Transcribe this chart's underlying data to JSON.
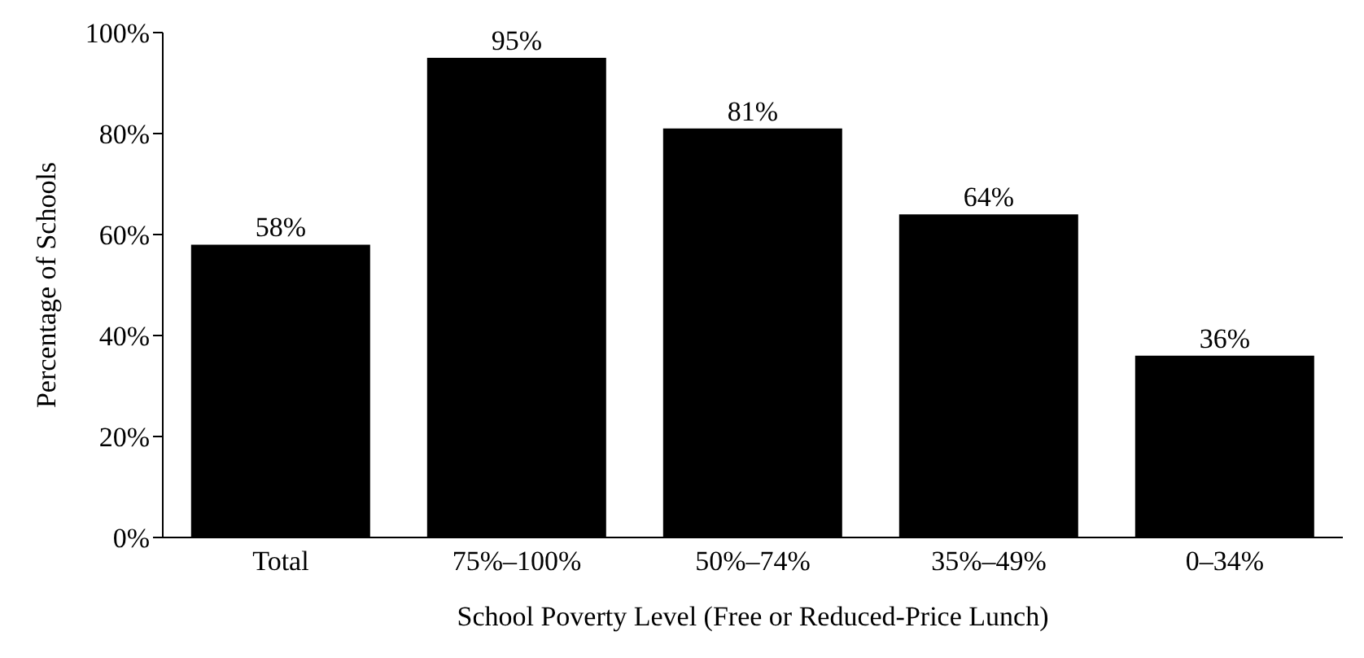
{
  "chart_data": {
    "type": "bar",
    "xlabel": "School Poverty Level (Free or Reduced-Price Lunch)",
    "ylabel": "Percentage of Schools",
    "categories": [
      "Total",
      "75%–100%",
      "50%–74%",
      "35%–49%",
      "0–34%"
    ],
    "values": [
      58,
      95,
      81,
      64,
      36
    ],
    "value_labels": [
      "58%",
      "95%",
      "81%",
      "64%",
      "36%"
    ],
    "color": "#000000",
    "ylim": [
      0,
      100
    ],
    "yticks": [
      {
        "value": 0,
        "label": "0%"
      },
      {
        "value": 20,
        "label": "20%"
      },
      {
        "value": 40,
        "label": "40%"
      },
      {
        "value": 60,
        "label": "60%"
      },
      {
        "value": 80,
        "label": "80%"
      },
      {
        "value": 100,
        "label": "100%"
      }
    ],
    "grid": false,
    "legend": false
  }
}
